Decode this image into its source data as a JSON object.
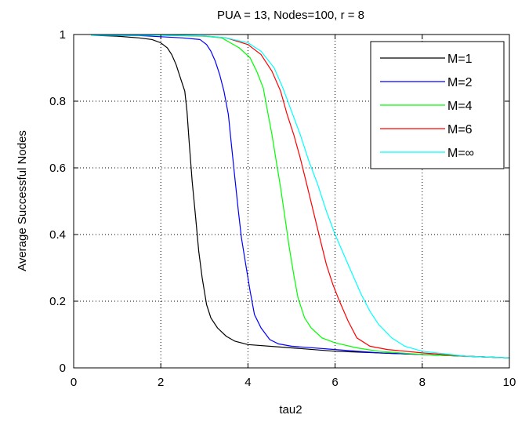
{
  "chart_data": {
    "type": "line",
    "title": "PUA = 13, Nodes=100, r = 8",
    "xlabel": "tau2",
    "ylabel": "Average Successful Nodes",
    "xlim": [
      0,
      10
    ],
    "ylim": [
      0,
      1
    ],
    "xticks": [
      0,
      2,
      4,
      6,
      8,
      10
    ],
    "yticks": [
      0,
      0.2,
      0.4,
      0.6,
      0.8,
      1
    ],
    "xtick_labels": [
      "0",
      "2",
      "4",
      "6",
      "8",
      "10"
    ],
    "ytick_labels": [
      "0",
      "0.2",
      "0.4",
      "0.6",
      "0.8",
      "1"
    ],
    "grid": true,
    "grid_style": "dotted",
    "legend_position": "top-right",
    "series": [
      {
        "name": "M=1",
        "color": "#000000",
        "points": [
          [
            0.4,
            0.998
          ],
          [
            1.0,
            0.995
          ],
          [
            1.5,
            0.99
          ],
          [
            1.8,
            0.985
          ],
          [
            2.0,
            0.975
          ],
          [
            2.15,
            0.96
          ],
          [
            2.25,
            0.94
          ],
          [
            2.35,
            0.91
          ],
          [
            2.45,
            0.87
          ],
          [
            2.55,
            0.83
          ],
          [
            2.6,
            0.77
          ],
          [
            2.65,
            0.68
          ],
          [
            2.72,
            0.56
          ],
          [
            2.8,
            0.45
          ],
          [
            2.87,
            0.35
          ],
          [
            2.95,
            0.27
          ],
          [
            3.05,
            0.19
          ],
          [
            3.15,
            0.15
          ],
          [
            3.3,
            0.12
          ],
          [
            3.5,
            0.095
          ],
          [
            3.7,
            0.08
          ],
          [
            4.0,
            0.07
          ],
          [
            5.0,
            0.06
          ],
          [
            6.0,
            0.05
          ],
          [
            7.0,
            0.045
          ],
          [
            8.0,
            0.04
          ],
          [
            9.0,
            0.035
          ],
          [
            10.0,
            0.03
          ]
        ]
      },
      {
        "name": "M=2",
        "color": "#0000ff",
        "points": [
          [
            0.4,
            0.998
          ],
          [
            1.5,
            0.997
          ],
          [
            2.5,
            0.99
          ],
          [
            2.9,
            0.985
          ],
          [
            3.05,
            0.97
          ],
          [
            3.15,
            0.95
          ],
          [
            3.25,
            0.92
          ],
          [
            3.35,
            0.88
          ],
          [
            3.45,
            0.83
          ],
          [
            3.55,
            0.76
          ],
          [
            3.62,
            0.67
          ],
          [
            3.7,
            0.57
          ],
          [
            3.78,
            0.47
          ],
          [
            3.85,
            0.39
          ],
          [
            3.95,
            0.31
          ],
          [
            4.05,
            0.23
          ],
          [
            4.15,
            0.16
          ],
          [
            4.3,
            0.12
          ],
          [
            4.5,
            0.085
          ],
          [
            4.7,
            0.072
          ],
          [
            5.0,
            0.065
          ],
          [
            6.0,
            0.055
          ],
          [
            7.0,
            0.045
          ],
          [
            8.0,
            0.04
          ],
          [
            9.0,
            0.035
          ],
          [
            10.0,
            0.03
          ]
        ]
      },
      {
        "name": "M=4",
        "color": "#00ff00",
        "points": [
          [
            0.4,
            0.998
          ],
          [
            2.0,
            0.998
          ],
          [
            3.0,
            0.995
          ],
          [
            3.4,
            0.99
          ],
          [
            3.8,
            0.96
          ],
          [
            4.05,
            0.93
          ],
          [
            4.2,
            0.89
          ],
          [
            4.35,
            0.84
          ],
          [
            4.45,
            0.77
          ],
          [
            4.55,
            0.7
          ],
          [
            4.65,
            0.62
          ],
          [
            4.75,
            0.54
          ],
          [
            4.85,
            0.45
          ],
          [
            4.95,
            0.36
          ],
          [
            5.05,
            0.28
          ],
          [
            5.15,
            0.21
          ],
          [
            5.3,
            0.15
          ],
          [
            5.45,
            0.12
          ],
          [
            5.7,
            0.09
          ],
          [
            6.0,
            0.075
          ],
          [
            6.5,
            0.06
          ],
          [
            7.0,
            0.05
          ],
          [
            8.0,
            0.04
          ],
          [
            9.0,
            0.035
          ],
          [
            10.0,
            0.03
          ]
        ]
      },
      {
        "name": "M=6",
        "color": "#ff0000",
        "points": [
          [
            0.4,
            0.998
          ],
          [
            2.0,
            0.998
          ],
          [
            3.0,
            0.996
          ],
          [
            3.5,
            0.99
          ],
          [
            4.0,
            0.97
          ],
          [
            4.3,
            0.94
          ],
          [
            4.55,
            0.89
          ],
          [
            4.75,
            0.83
          ],
          [
            4.9,
            0.76
          ],
          [
            5.05,
            0.7
          ],
          [
            5.2,
            0.63
          ],
          [
            5.35,
            0.55
          ],
          [
            5.5,
            0.47
          ],
          [
            5.65,
            0.39
          ],
          [
            5.8,
            0.31
          ],
          [
            5.95,
            0.25
          ],
          [
            6.1,
            0.2
          ],
          [
            6.3,
            0.14
          ],
          [
            6.5,
            0.09
          ],
          [
            6.8,
            0.065
          ],
          [
            7.2,
            0.055
          ],
          [
            8.0,
            0.045
          ],
          [
            9.0,
            0.035
          ],
          [
            10.0,
            0.03
          ]
        ]
      },
      {
        "name": "M=∞",
        "color": "#00ffff",
        "points": [
          [
            0.4,
            0.998
          ],
          [
            2.0,
            0.998
          ],
          [
            3.0,
            0.996
          ],
          [
            3.5,
            0.99
          ],
          [
            4.0,
            0.975
          ],
          [
            4.3,
            0.95
          ],
          [
            4.6,
            0.9
          ],
          [
            4.8,
            0.84
          ],
          [
            5.0,
            0.77
          ],
          [
            5.2,
            0.7
          ],
          [
            5.4,
            0.62
          ],
          [
            5.6,
            0.55
          ],
          [
            5.8,
            0.47
          ],
          [
            6.0,
            0.4
          ],
          [
            6.2,
            0.34
          ],
          [
            6.4,
            0.28
          ],
          [
            6.6,
            0.22
          ],
          [
            6.8,
            0.17
          ],
          [
            7.0,
            0.13
          ],
          [
            7.3,
            0.09
          ],
          [
            7.6,
            0.065
          ],
          [
            8.0,
            0.05
          ],
          [
            9.0,
            0.035
          ],
          [
            10.0,
            0.03
          ]
        ]
      }
    ]
  }
}
